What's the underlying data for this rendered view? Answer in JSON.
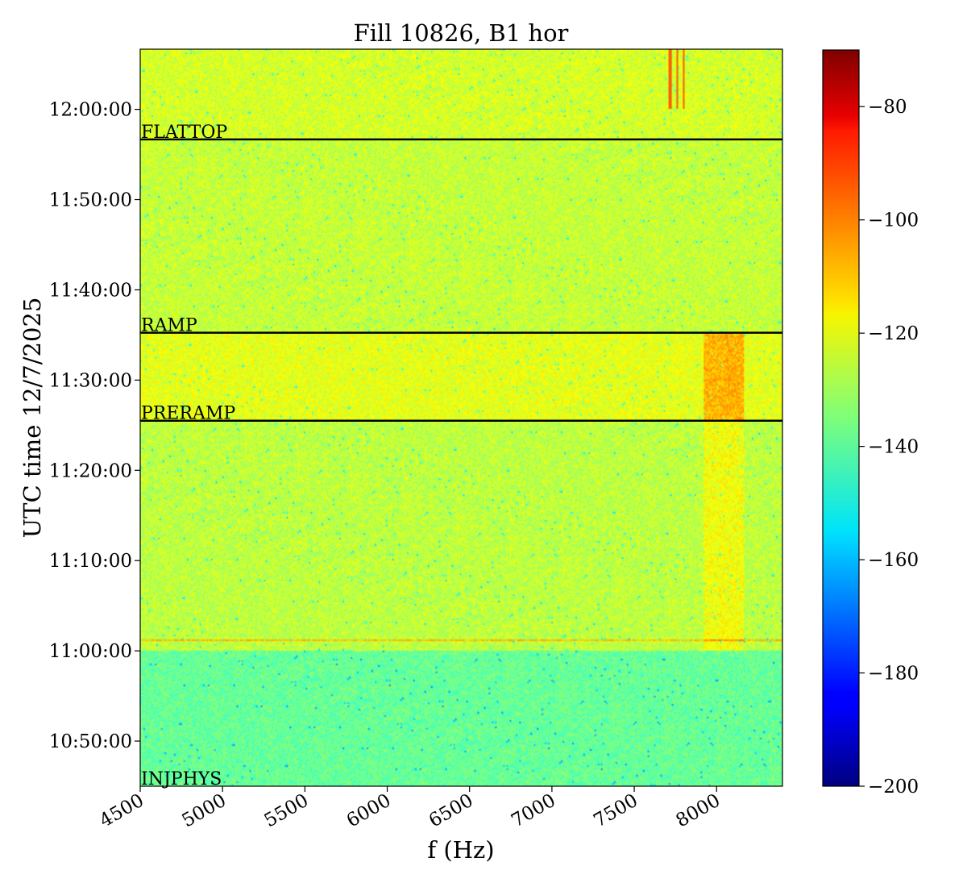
{
  "chart_data": {
    "type": "heatmap",
    "title": "Fill 10826, B1 hor",
    "xlabel": "f (Hz)",
    "ylabel": "UTC time 12/7/2025",
    "xlim": [
      4500,
      8400
    ],
    "ylim": [
      "10:45:00",
      "12:06:40"
    ],
    "x_ticks": [
      "4500",
      "5000",
      "5500",
      "6000",
      "6500",
      "7000",
      "7500",
      "8000"
    ],
    "y_ticks": [
      "10:50:00",
      "11:00:00",
      "11:10:00",
      "11:20:00",
      "11:30:00",
      "11:40:00",
      "11:50:00",
      "12:00:00"
    ],
    "colorbar": {
      "colormap": "jet",
      "range": [
        -200,
        -70
      ],
      "ticks": [
        "-200",
        "-180",
        "-160",
        "-140",
        "-120",
        "-100",
        "-80"
      ]
    },
    "annotations": [
      {
        "label": "INJPHYS",
        "time": "10:45:00"
      },
      {
        "label": "PRERAMP",
        "time": "11:25:30"
      },
      {
        "label": "RAMP",
        "time": "11:35:15"
      },
      {
        "label": "FLATTOP",
        "time": "11:56:40"
      }
    ]
  }
}
